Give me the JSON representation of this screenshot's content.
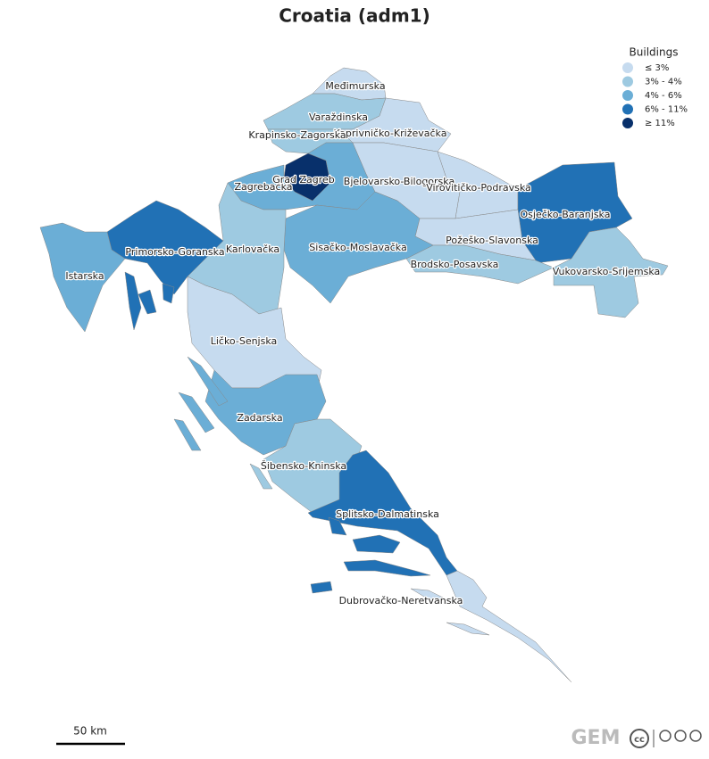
{
  "title": "Croatia (adm1)",
  "legend": {
    "title": "Buildings",
    "items": [
      {
        "label": "≤ 3%",
        "color": "#c6dbef"
      },
      {
        "label": "3% - 4%",
        "color": "#9ecae1"
      },
      {
        "label": "4% - 6%",
        "color": "#6baed6"
      },
      {
        "label": "6% - 11%",
        "color": "#2171b5"
      },
      {
        "label": "≥ 11%",
        "color": "#08306b"
      }
    ]
  },
  "regions": [
    {
      "name": "Međimurska",
      "color": "#c6dbef"
    },
    {
      "name": "Varaždinska",
      "color": "#9ecae1"
    },
    {
      "name": "Koprivničko-Križevačka",
      "color": "#c6dbef"
    },
    {
      "name": "Krapinsko-Zagorska",
      "color": "#9ecae1"
    },
    {
      "name": "Zagrebačka",
      "color": "#6baed6"
    },
    {
      "name": "Grad Zagreb",
      "color": "#08306b"
    },
    {
      "name": "Bjelovarsko-Bilogorska",
      "color": "#c6dbef"
    },
    {
      "name": "Virovitičko-Podravska",
      "color": "#c6dbef"
    },
    {
      "name": "Osječko-Baranjska",
      "color": "#2171b5"
    },
    {
      "name": "Požeško-Slavonska",
      "color": "#c6dbef"
    },
    {
      "name": "Brodsko-Posavska",
      "color": "#9ecae1"
    },
    {
      "name": "Vukovarsko-Srijemska",
      "color": "#9ecae1"
    },
    {
      "name": "Sisačko-Moslavačka",
      "color": "#6baed6"
    },
    {
      "name": "Karlovačka",
      "color": "#9ecae1"
    },
    {
      "name": "Primorsko-Goranska",
      "color": "#2171b5"
    },
    {
      "name": "Istarska",
      "color": "#6baed6"
    },
    {
      "name": "Ličko-Senjska",
      "color": "#c6dbef"
    },
    {
      "name": "Zadarska",
      "color": "#6baed6"
    },
    {
      "name": "Šibensko-Kninska",
      "color": "#9ecae1"
    },
    {
      "name": "Splitsko-Dalmatinska",
      "color": "#2171b5"
    },
    {
      "name": "Dubrovačko-Neretvanska",
      "color": "#c6dbef"
    }
  ],
  "scale_bar": "50 km",
  "logo": "GEM",
  "license": "cc"
}
